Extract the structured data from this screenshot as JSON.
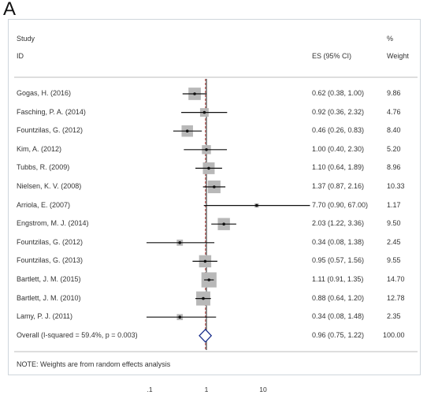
{
  "panel_label": "A",
  "header": {
    "study_line1": "Study",
    "study_line2": "ID",
    "es_label": "ES (95% CI)",
    "weight_line1": "%",
    "weight_line2": "Weight"
  },
  "note": "NOTE: Weights are from random effects analysis",
  "chart_data": {
    "type": "forest",
    "x_scale": "log",
    "xlim": [
      0.06,
      50
    ],
    "null_line": 1,
    "pooled_line": 0.96,
    "x_ticks": [
      {
        "value": 0.1,
        "label": ".1"
      },
      {
        "value": 1,
        "label": "1"
      },
      {
        "value": 10,
        "label": "10"
      }
    ],
    "studies": [
      {
        "label": "Gogas, H. (2016)",
        "es": 0.62,
        "lo": 0.38,
        "hi": 1.0,
        "es_text": "0.62 (0.38, 1.00)",
        "weight": 9.86,
        "weight_text": "9.86"
      },
      {
        "label": "Fasching, P. A. (2014)",
        "es": 0.92,
        "lo": 0.36,
        "hi": 2.32,
        "es_text": "0.92 (0.36, 2.32)",
        "weight": 4.76,
        "weight_text": "4.76"
      },
      {
        "label": "Fountzilas, G. (2012)",
        "es": 0.46,
        "lo": 0.26,
        "hi": 0.83,
        "es_text": "0.46 (0.26, 0.83)",
        "weight": 8.4,
        "weight_text": "8.40"
      },
      {
        "label": "Kim, A. (2012)",
        "es": 1.0,
        "lo": 0.4,
        "hi": 2.3,
        "es_text": "1.00 (0.40, 2.30)",
        "weight": 5.2,
        "weight_text": "5.20"
      },
      {
        "label": "Tubbs, R. (2009)",
        "es": 1.1,
        "lo": 0.64,
        "hi": 1.89,
        "es_text": "1.10 (0.64, 1.89)",
        "weight": 8.96,
        "weight_text": "8.96"
      },
      {
        "label": "Nielsen, K. V. (2008)",
        "es": 1.37,
        "lo": 0.87,
        "hi": 2.16,
        "es_text": "1.37 (0.87, 2.16)",
        "weight": 10.33,
        "weight_text": "10.33"
      },
      {
        "label": "Arriola, E. (2007)",
        "es": 7.7,
        "lo": 0.9,
        "hi": 67.0,
        "es_text": "7.70 (0.90, 67.00)",
        "weight": 1.17,
        "weight_text": "1.17"
      },
      {
        "label": "Engstrom, M. J. (2014)",
        "es": 2.03,
        "lo": 1.22,
        "hi": 3.36,
        "es_text": "2.03 (1.22, 3.36)",
        "weight": 9.5,
        "weight_text": "9.50"
      },
      {
        "label": "Fountzilas, G. (2012)",
        "es": 0.34,
        "lo": 0.08,
        "hi": 1.38,
        "es_text": "0.34 (0.08, 1.38)",
        "weight": 2.45,
        "weight_text": "2.45"
      },
      {
        "label": "Fountzilas, G. (2013)",
        "es": 0.95,
        "lo": 0.57,
        "hi": 1.56,
        "es_text": "0.95 (0.57, 1.56)",
        "weight": 9.55,
        "weight_text": "9.55"
      },
      {
        "label": "Bartlett, J. M. (2015)",
        "es": 1.11,
        "lo": 0.91,
        "hi": 1.35,
        "es_text": "1.11 (0.91, 1.35)",
        "weight": 14.7,
        "weight_text": "14.70"
      },
      {
        "label": "Bartlett, J. M. (2010)",
        "es": 0.88,
        "lo": 0.64,
        "hi": 1.2,
        "es_text": "0.88 (0.64, 1.20)",
        "weight": 12.78,
        "weight_text": "12.78"
      },
      {
        "label": "Lamy, P. J. (2011)",
        "es": 0.34,
        "lo": 0.08,
        "hi": 1.48,
        "es_text": "0.34 (0.08, 1.48)",
        "weight": 2.35,
        "weight_text": "2.35"
      }
    ],
    "overall": {
      "label": "Overall  (I-squared = 59.4%, p = 0.003)",
      "es": 0.96,
      "lo": 0.75,
      "hi": 1.22,
      "es_text": "0.96 (0.75, 1.22)",
      "weight_text": "100.00"
    },
    "colors": {
      "box": "#b8b8b8",
      "ci_line": "#111111",
      "diamond": "#1a2f8c",
      "null_line": "#222222",
      "pooled_line": "#c0504d",
      "separator": "#bdbdbd"
    }
  }
}
